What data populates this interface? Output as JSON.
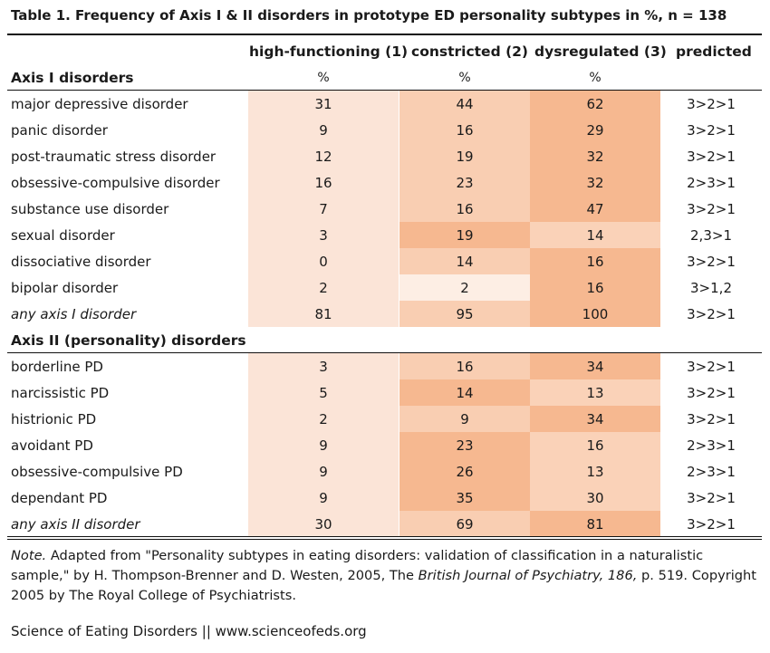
{
  "title": "Table 1. Frequency of Axis I & II disorders in prototype ED personality subtypes in %, n = 138",
  "colors": {
    "hf": "#fbe4d7",
    "c_light": "#fce0ce",
    "c_mid": "#f9ceb2",
    "c_dark": "#f6b890",
    "d_light": "#fad2b8",
    "d_dark": "#f6b890",
    "faint": "#fdeee4"
  },
  "headers": {
    "hf": "high-functioning (1)",
    "con": "constricted (2)",
    "dys": "dysregulated (3)",
    "pred": "predicted",
    "pct": "%"
  },
  "axis1": {
    "label": "Axis I disorders",
    "rows": [
      {
        "label": "major depressive disorder",
        "hf": "31",
        "con": "44",
        "dys": "62",
        "pred": "3>2>1"
      },
      {
        "label": "panic disorder",
        "hf": "9",
        "con": "16",
        "dys": "29",
        "pred": "3>2>1"
      },
      {
        "label": "post-traumatic stress disorder",
        "hf": "12",
        "con": "19",
        "dys": "32",
        "pred": "3>2>1"
      },
      {
        "label": "obsessive-compulsive disorder",
        "hf": "16",
        "con": "23",
        "dys": "32",
        "pred": "2>3>1"
      },
      {
        "label": "substance use disorder",
        "hf": "7",
        "con": "16",
        "dys": "47",
        "pred": "3>2>1"
      },
      {
        "label": "sexual disorder",
        "hf": "3",
        "con": "19",
        "dys": "14",
        "pred": "2,3>1"
      },
      {
        "label": "dissociative disorder",
        "hf": "0",
        "con": "14",
        "dys": "16",
        "pred": "3>2>1"
      },
      {
        "label": "bipolar disorder",
        "hf": "2",
        "con": "2",
        "dys": "16",
        "pred": "3>1,2"
      },
      {
        "label": "any axis I disorder",
        "hf": "81",
        "con": "95",
        "dys": "100",
        "pred": "3>2>1"
      }
    ]
  },
  "axis2": {
    "label": "Axis II (personality) disorders",
    "rows": [
      {
        "label": "borderline PD",
        "hf": "3",
        "con": "16",
        "dys": "34",
        "pred": "3>2>1"
      },
      {
        "label": "narcissistic PD",
        "hf": "5",
        "con": "14",
        "dys": "13",
        "pred": "3>2>1"
      },
      {
        "label": "histrionic PD",
        "hf": "2",
        "con": "9",
        "dys": "34",
        "pred": "3>2>1"
      },
      {
        "label": "avoidant PD",
        "hf": "9",
        "con": "23",
        "dys": "16",
        "pred": "2>3>1"
      },
      {
        "label": "obsessive-compulsive PD",
        "hf": "9",
        "con": "26",
        "dys": "13",
        "pred": "2>3>1"
      },
      {
        "label": "dependant PD",
        "hf": "9",
        "con": "35",
        "dys": "30",
        "pred": "3>2>1"
      },
      {
        "label": "any axis II disorder",
        "hf": "30",
        "con": "69",
        "dys": "81",
        "pred": "3>2>1"
      }
    ]
  },
  "note": {
    "prefix": "Note.",
    "text1": " Adapted from \"Personality subtypes in eating disorders: validation of classification in a naturalistic sample,\" by H. Thompson-Brenner and D. Westen, 2005, The ",
    "journal": "British Journal of Psychiatry, 186,",
    "text2": " p. 519. Copyright 2005 by The Royal College of Psychiatrists."
  },
  "site": "Science of Eating Disorders || www.scienceofeds.org"
}
